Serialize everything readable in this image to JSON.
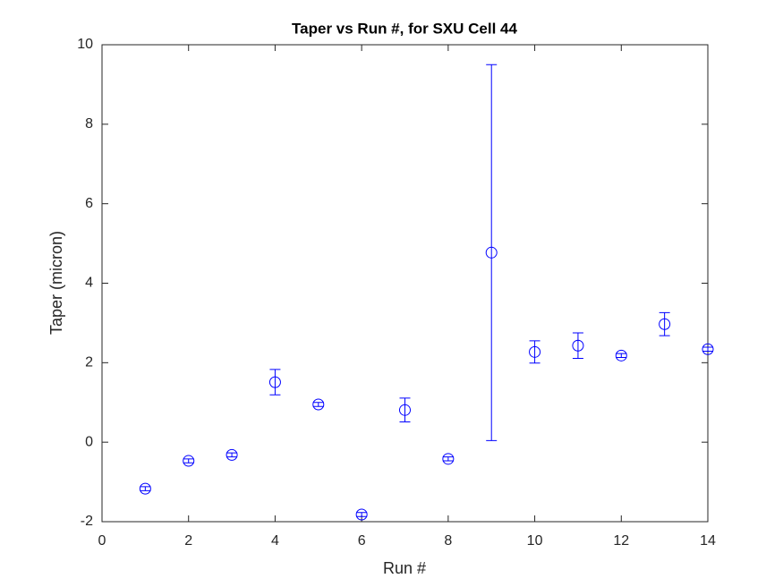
{
  "chart_data": {
    "type": "errorbar",
    "title": "Taper vs Run #, for SXU Cell 44",
    "xlabel": "Run #",
    "ylabel": "Taper (micron)",
    "x": [
      1,
      2,
      3,
      4,
      5,
      6,
      7,
      8,
      9,
      10,
      11,
      12,
      13,
      14
    ],
    "values": [
      -1.17,
      -0.47,
      -0.32,
      1.51,
      0.95,
      -1.82,
      0.81,
      -0.42,
      4.77,
      2.27,
      2.43,
      2.18,
      2.97,
      2.34
    ],
    "errors": [
      0.05,
      0.05,
      0.05,
      0.32,
      0.05,
      0.05,
      0.3,
      0.05,
      4.73,
      0.28,
      0.32,
      0.05,
      0.29,
      0.05
    ],
    "color": "#0000ff",
    "xlim": [
      0,
      14
    ],
    "xticks": [
      0,
      2,
      4,
      6,
      8,
      10,
      12,
      14
    ],
    "ylim": [
      -2,
      10
    ],
    "yticks": [
      -2,
      0,
      2,
      4,
      6,
      8,
      10
    ]
  }
}
